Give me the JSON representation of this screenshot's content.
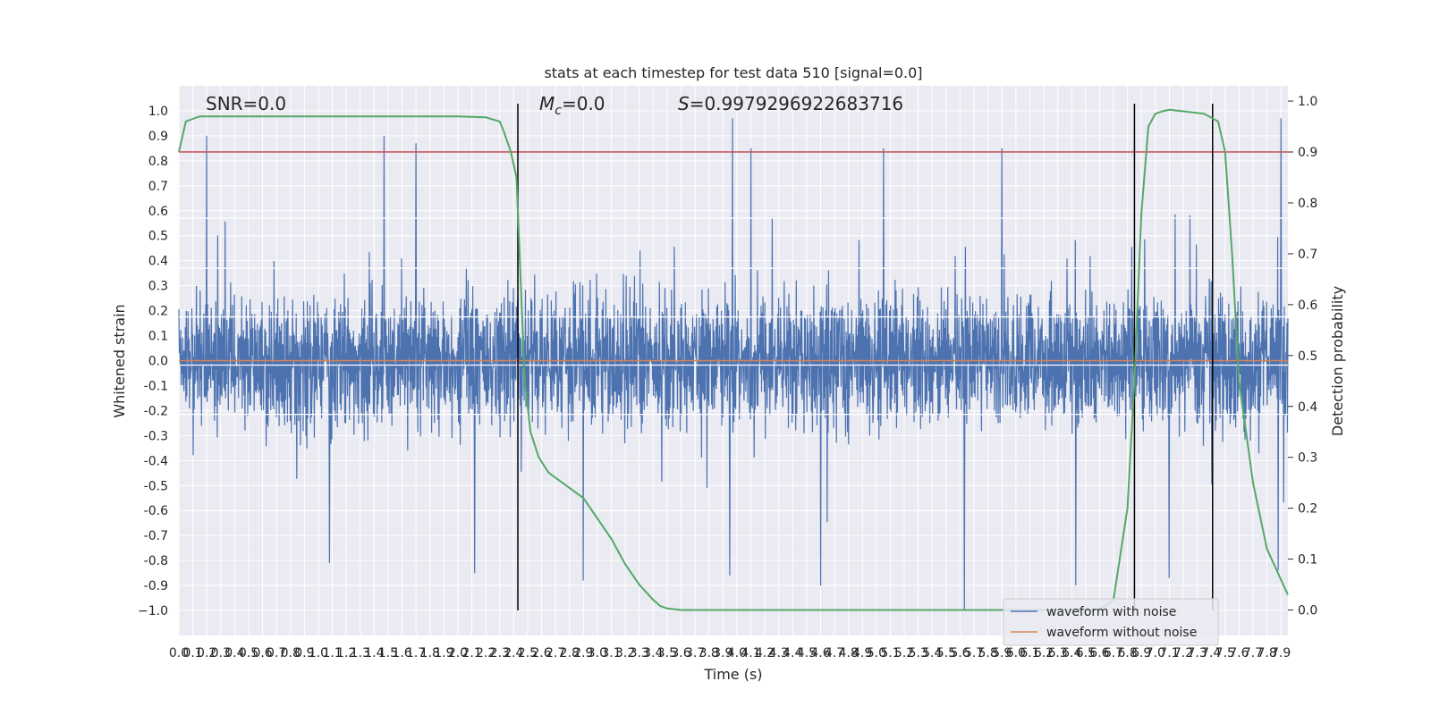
{
  "chart_data": {
    "type": "line",
    "title": "stats at each timestep for test data 510 [signal=0.0]",
    "xlabel": "Time (s)",
    "ylabel": "Whitened strain",
    "ylabel_right": "Detection probability",
    "xlim": [
      0.0,
      7.95
    ],
    "ylim": [
      -1.1,
      1.1
    ],
    "ylim_right": [
      -0.05,
      1.03
    ],
    "x_ticks": [
      "0.0",
      "0.1",
      "0.2",
      "0.3",
      "0.4",
      "0.5",
      "0.6",
      "0.7",
      "0.8",
      "0.9",
      "1.0",
      "1.1",
      "1.2",
      "1.3",
      "1.4",
      "1.5",
      "1.6",
      "1.7",
      "1.8",
      "1.9",
      "2.0",
      "2.1",
      "2.2",
      "2.3",
      "2.4",
      "2.5",
      "2.6",
      "2.7",
      "2.8",
      "2.9",
      "3.0",
      "3.1",
      "3.2",
      "3.3",
      "3.4",
      "3.5",
      "3.6",
      "3.7",
      "3.8",
      "3.9",
      "4.0",
      "4.1",
      "4.2",
      "4.3",
      "4.4",
      "4.5",
      "4.6",
      "4.7",
      "4.8",
      "4.9",
      "5.0",
      "5.1",
      "5.2",
      "5.3",
      "5.4",
      "5.5",
      "5.6",
      "5.7",
      "5.8",
      "5.9",
      "6.0",
      "6.1",
      "6.2",
      "6.3",
      "6.4",
      "6.5",
      "6.6",
      "6.7",
      "6.8",
      "6.9",
      "7.0",
      "7.1",
      "7.2",
      "7.3",
      "7.4",
      "7.5",
      "7.6",
      "7.7",
      "7.8",
      "7.9"
    ],
    "y_ticks": [
      "1.0",
      "0.9",
      "0.8",
      "0.7",
      "0.6",
      "0.5",
      "0.4",
      "0.3",
      "0.2",
      "0.1",
      "0.0",
      "-0.1",
      "-0.2",
      "-0.3",
      "-0.4",
      "-0.5",
      "-0.6",
      "-0.7",
      "-0.8",
      "-0.9",
      "−1.0"
    ],
    "y_ticks_right": [
      "1.0",
      "0.9",
      "0.8",
      "0.7",
      "0.6",
      "0.5",
      "0.4",
      "0.3",
      "0.2",
      "0.1",
      "0.0"
    ],
    "annotations": {
      "snr": "SNR=0.0",
      "mc_symbol": "M",
      "mc_sub": "c",
      "mc_value": "=0.0",
      "s_symbol": "S",
      "s_value": "=0.9979296922683716"
    },
    "series": [
      {
        "name": "waveform with noise",
        "color": "#4c72b0",
        "kind": "noise",
        "peaks": [
          {
            "x": 0.2,
            "y": 0.9
          },
          {
            "x": 1.47,
            "y": 0.9
          },
          {
            "x": 1.7,
            "y": 0.87
          },
          {
            "x": 3.97,
            "y": 0.97
          },
          {
            "x": 4.1,
            "y": 0.85
          },
          {
            "x": 5.05,
            "y": 0.85
          },
          {
            "x": 5.9,
            "y": 0.85
          },
          {
            "x": 7.9,
            "y": 0.97
          },
          {
            "x": 1.08,
            "y": -0.81
          },
          {
            "x": 2.12,
            "y": -0.85
          },
          {
            "x": 2.9,
            "y": -0.88
          },
          {
            "x": 3.95,
            "y": -0.86
          },
          {
            "x": 4.6,
            "y": -0.9
          },
          {
            "x": 5.63,
            "y": -1.0
          },
          {
            "x": 6.43,
            "y": -0.9
          },
          {
            "x": 7.1,
            "y": -0.87
          },
          {
            "x": 7.88,
            "y": -0.84
          }
        ]
      },
      {
        "name": "waveform without noise",
        "color": "#dd8452",
        "kind": "flat",
        "value": 0.0
      },
      {
        "name": "",
        "color": "#55a868",
        "kind": "probability",
        "axis": "right",
        "x": [
          0.0,
          0.05,
          0.1,
          0.15,
          0.3,
          0.6,
          1.0,
          1.5,
          2.0,
          2.2,
          2.3,
          2.33,
          2.38,
          2.42,
          2.45,
          2.48,
          2.52,
          2.58,
          2.65,
          2.75,
          2.9,
          3.0,
          3.1,
          3.2,
          3.3,
          3.4,
          3.45,
          3.5,
          3.6,
          4.0,
          5.0,
          6.0,
          6.6,
          6.7,
          6.8,
          6.85,
          6.9,
          6.95,
          7.0,
          7.05,
          7.1,
          7.2,
          7.35,
          7.45,
          7.5,
          7.55,
          7.6,
          7.7,
          7.8,
          7.9,
          7.95
        ],
        "y": [
          0.9,
          0.96,
          0.965,
          0.97,
          0.97,
          0.97,
          0.97,
          0.97,
          0.97,
          0.968,
          0.96,
          0.94,
          0.9,
          0.85,
          0.65,
          0.45,
          0.35,
          0.3,
          0.27,
          0.25,
          0.22,
          0.18,
          0.14,
          0.09,
          0.05,
          0.02,
          0.008,
          0.003,
          0.0,
          0.0,
          0.0,
          0.0,
          0.0,
          0.02,
          0.2,
          0.45,
          0.78,
          0.95,
          0.975,
          0.98,
          0.983,
          0.98,
          0.975,
          0.96,
          0.9,
          0.7,
          0.45,
          0.25,
          0.12,
          0.06,
          0.03
        ]
      },
      {
        "name": "",
        "color": "#c44e52",
        "kind": "threshold",
        "axis": "right",
        "value": 0.9
      }
    ],
    "vertical_lines_x": [
      2.43,
      6.85,
      7.41
    ],
    "horizontal_white_lines_y": [
      0.57,
      0.37,
      0.175,
      -0.018,
      -0.215
    ],
    "grid": true,
    "legend": {
      "position": "bottom-right",
      "entries": [
        {
          "label": "waveform with noise",
          "color": "#4c72b0"
        },
        {
          "label": "waveform without noise",
          "color": "#dd8452"
        }
      ]
    }
  }
}
